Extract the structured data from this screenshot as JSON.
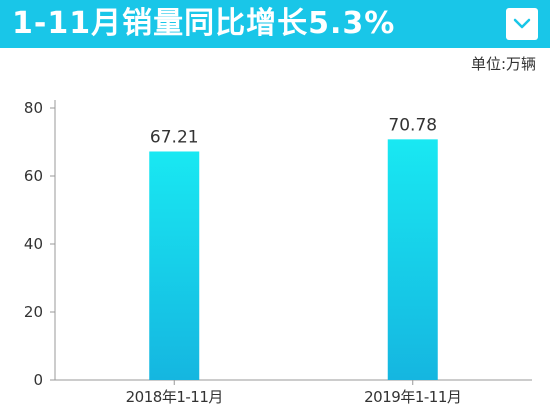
{
  "header": {
    "title": "1-11月销量同比增长5.3%",
    "dropdown_icon": "chevron-down-icon"
  },
  "colors": {
    "title_bar": "#19c6e8",
    "bar_top": "#19e8f2",
    "bar_bottom": "#15b6e0"
  },
  "chart_data": {
    "type": "bar",
    "unit_label": "单位:万辆",
    "categories": [
      "2018年1-11月",
      "2019年1-11月"
    ],
    "values": [
      67.21,
      70.78
    ],
    "value_labels": [
      "67.21",
      "70.78"
    ],
    "ylim": [
      0,
      80
    ],
    "yticks": [
      0,
      20,
      40,
      60,
      80
    ],
    "ytick_labels": [
      "0",
      "20",
      "40",
      "60",
      "80"
    ],
    "grid": false,
    "legend": false
  }
}
